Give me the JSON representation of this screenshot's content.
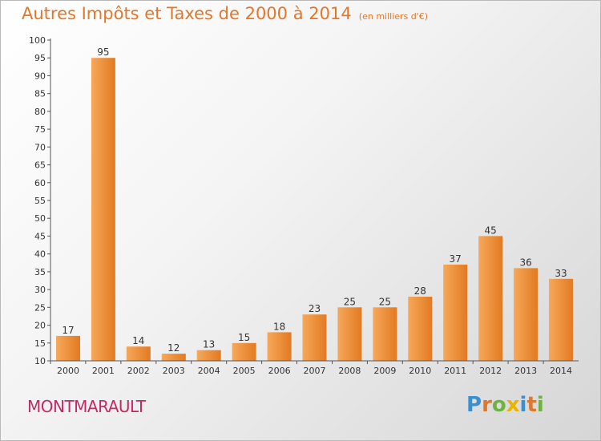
{
  "title": "Autres Impôts et Taxes de 2000 à 2014",
  "unit": "(en milliers d'€)",
  "commune": "MONTMARAULT",
  "logo": {
    "chars": [
      "P",
      "r",
      "o",
      "x",
      "i",
      "t",
      "i"
    ],
    "colors": [
      "#3a8fd1",
      "#e0772a",
      "#6db33f",
      "#e8b400",
      "#3a8fd1",
      "#e0772a",
      "#6db33f"
    ]
  },
  "colors": {
    "bar_light": "#f6a85a",
    "bar_dark": "#e27a22",
    "axis": "#555555",
    "title": "#e0772a",
    "commune": "#c42a62"
  },
  "chart_data": {
    "type": "bar",
    "categories": [
      "2000",
      "2001",
      "2002",
      "2003",
      "2004",
      "2005",
      "2006",
      "2007",
      "2008",
      "2009",
      "2010",
      "2011",
      "2012",
      "2013",
      "2014"
    ],
    "values": [
      17,
      95,
      14,
      12,
      13,
      15,
      18,
      23,
      25,
      25,
      28,
      37,
      45,
      36,
      33
    ],
    "ylim": [
      10,
      100
    ],
    "yticks": [
      10,
      15,
      20,
      25,
      30,
      35,
      40,
      45,
      50,
      55,
      60,
      65,
      70,
      75,
      80,
      85,
      90,
      95,
      100
    ],
    "grid": false,
    "data_labels": true
  }
}
